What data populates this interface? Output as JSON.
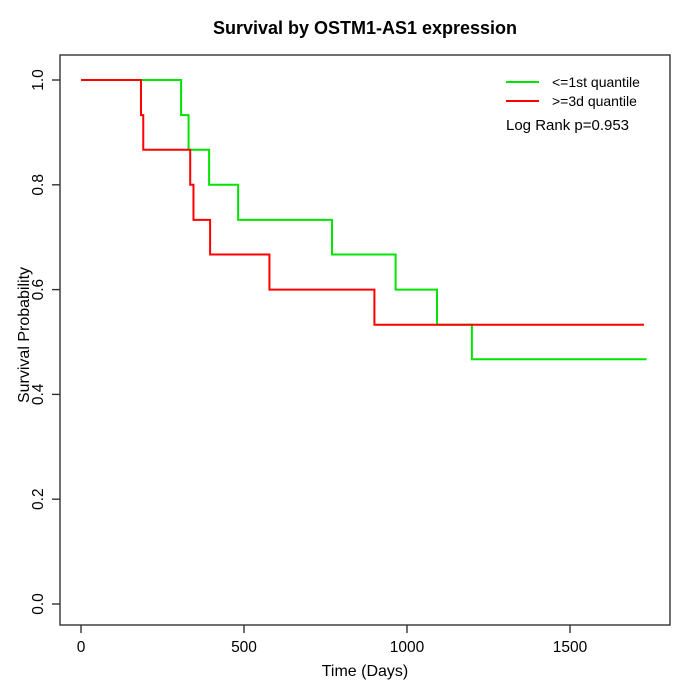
{
  "chart_data": {
    "type": "line",
    "subtype": "kaplan-meier-step",
    "title": "Survival by OSTM1-AS1 expression",
    "xlabel": "Time (Days)",
    "ylabel": "Survival Probability",
    "xlim": [
      0,
      1805
    ],
    "ylim": [
      0.0,
      1.0
    ],
    "grid": false,
    "legend_position": "top-right",
    "annotation": "Log Rank p=0.953",
    "x_ticks": {
      "values": [
        0,
        500,
        1000,
        1500
      ],
      "labels": [
        "0",
        "500",
        "1000",
        "1500"
      ]
    },
    "y_ticks": {
      "values": [
        0.0,
        0.2,
        0.4,
        0.6,
        0.8,
        1.0
      ],
      "labels": [
        "0.0",
        "0.2",
        "0.4",
        "0.6",
        "0.8",
        "1.0"
      ]
    },
    "series": [
      {
        "name": "<=1st quantile",
        "color": "#00e400",
        "start_survival": 1.0,
        "end_time": 1735,
        "drops": [
          {
            "time": 307,
            "survival": 0.933
          },
          {
            "time": 330,
            "survival": 0.867
          },
          {
            "time": 393,
            "survival": 0.8
          },
          {
            "time": 482,
            "survival": 0.733
          },
          {
            "time": 770,
            "survival": 0.667
          },
          {
            "time": 965,
            "survival": 0.6
          },
          {
            "time": 1092,
            "survival": 0.533
          },
          {
            "time": 1199,
            "survival": 0.467
          }
        ]
      },
      {
        "name": ">=3d quantile",
        "color": "#ff0000",
        "start_survival": 1.0,
        "end_time": 1727,
        "drops": [
          {
            "time": 184,
            "survival": 0.933
          },
          {
            "time": 191,
            "survival": 0.867
          },
          {
            "time": 335,
            "survival": 0.8
          },
          {
            "time": 345,
            "survival": 0.733
          },
          {
            "time": 396,
            "survival": 0.667
          },
          {
            "time": 578,
            "survival": 0.6
          },
          {
            "time": 900,
            "survival": 0.533
          }
        ]
      }
    ]
  }
}
